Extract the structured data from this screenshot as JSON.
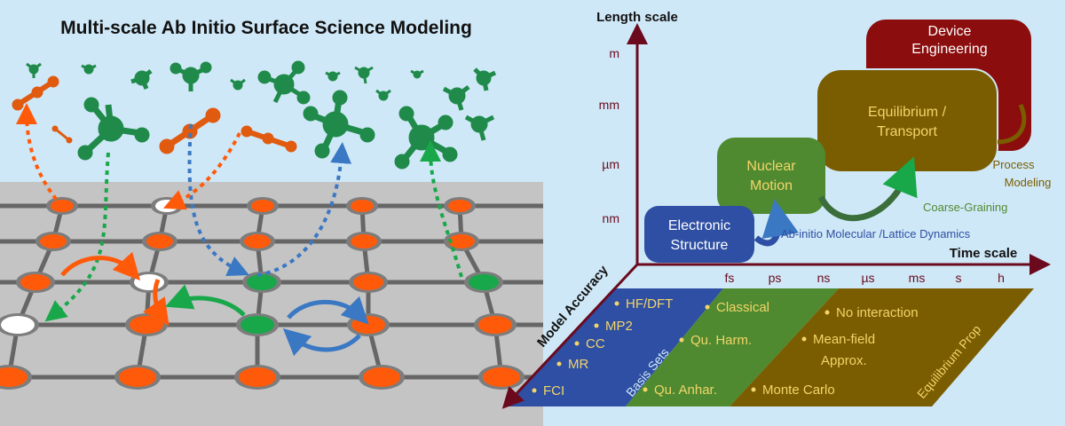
{
  "title": "Multi-scale Ab Initio Surface Science Modeling",
  "axes": {
    "length_label": "Length scale",
    "time_label": "Time scale",
    "accuracy_label": "Model Accuracy",
    "length_ticks": [
      "m",
      "mm",
      "µm",
      "nm"
    ],
    "time_ticks": [
      "fs",
      "ps",
      "ns",
      "µs",
      "ms",
      "s",
      "h"
    ]
  },
  "boxes": {
    "electronic": "Electronic Structure",
    "nuclear": "Nuclear Motion",
    "equilibrium": "Equilibrium / Transport",
    "device": "Device Engineering"
  },
  "arrows": {
    "ab_initio": "Ab-initio Molecular /Lattice Dynamics",
    "coarse": "Coarse-Graining",
    "process": "Process Modeling"
  },
  "methods": {
    "blue": [
      "HF/DFT",
      "MP2",
      "CC",
      "MR",
      "FCI"
    ],
    "blue_side": "Basis Sets",
    "green": [
      "Classical",
      "Qu. Harm.",
      "Qu. Anhar."
    ],
    "brown": [
      "No interaction",
      "Mean-field Approx.",
      "Monte Carlo"
    ],
    "brown_side": "Equilibrium Prop"
  },
  "colors": {
    "background": "#cfe8f7",
    "electronic": "#2e4fa3",
    "nuclear": "#4f8a30",
    "equilibrium": "#7a5d00",
    "device": "#8b0d0d",
    "axis": "#6b0a1d",
    "site_orange": "#ff5a0a",
    "site_green": "#18a84a",
    "site_grey": "#7d7d7d",
    "method_text": "#f2d56a"
  }
}
